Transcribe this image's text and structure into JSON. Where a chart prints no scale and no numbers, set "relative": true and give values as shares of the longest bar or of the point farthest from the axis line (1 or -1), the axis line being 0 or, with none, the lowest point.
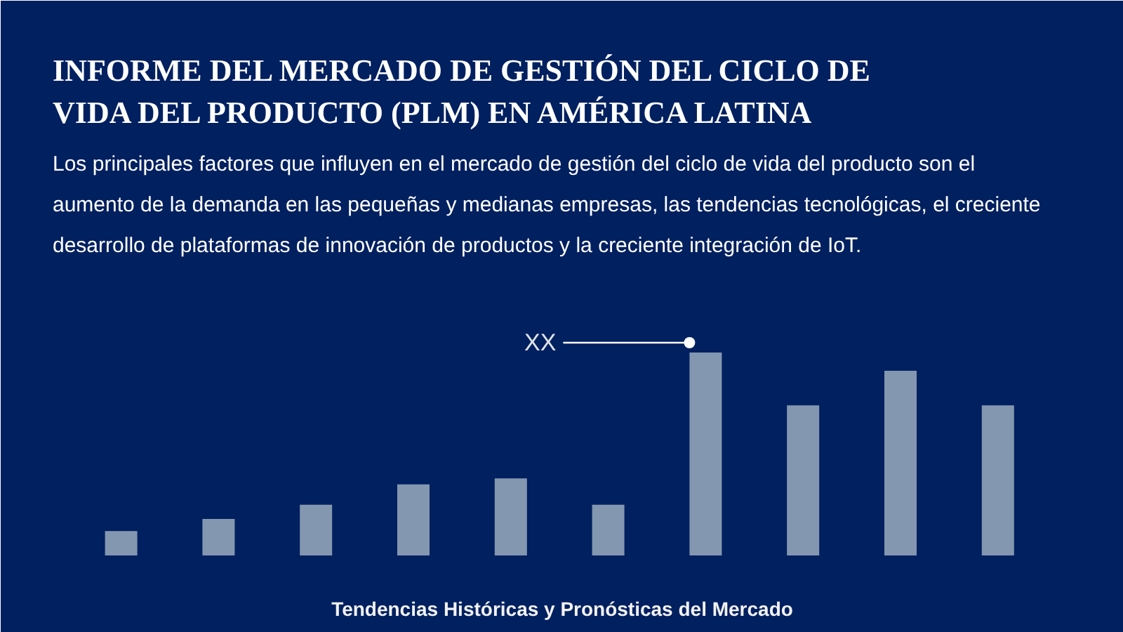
{
  "chart_data": {
    "type": "bar",
    "title": "INFORME DEL MERCADO DE GESTIÓN DEL CICLO DE VIDA DEL PRODUCTO (PLM) EN AMÉRICA LATINA",
    "subtitle": "Los principales factores que influyen en el mercado de gestión del ciclo de vida del producto son el aumento de la demanda en las pequeñas y medianas empresas, las tendencias tecnológicas, el creciente desarrollo de plataformas de innovación de productos y la creciente integración de IoT.",
    "xlabel": "Tendencias Históricas y Pronósticas del Mercado",
    "categories": [
      null,
      null,
      null,
      null,
      null,
      null,
      null,
      null,
      null,
      null
    ],
    "values": [
      0.12,
      0.18,
      0.25,
      0.35,
      0.38,
      0.25,
      1,
      0.74,
      0.91,
      0.74
    ],
    "color": "#8497b0",
    "relative": true,
    "annotations": [
      "XX"
    ]
  }
}
